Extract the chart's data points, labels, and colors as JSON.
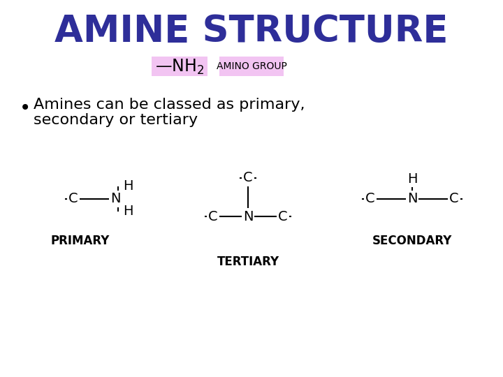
{
  "title": "AMINE STRUCTURE",
  "title_color": "#2E2E99",
  "bg_color": "#FFFFFF",
  "amino_box_color": "#F2C4F2",
  "amino_group_box_color": "#F2C4F2",
  "amino_group_text": "AMINO GROUP",
  "bullet_text_line1": "Amines can be classed as primary,",
  "bullet_text_line2": "secondary or tertiary",
  "primary_label": "PRIMARY",
  "secondary_label": "SECONDARY",
  "tertiary_label": "TERTIARY",
  "structure_color": "#000000",
  "title_fontsize": 38,
  "bullet_fontsize": 16,
  "struct_fontsize": 14,
  "label_fontsize": 12,
  "nh2_fontsize": 17,
  "amino_group_fontsize": 10,
  "lw": 1.5,
  "tick": 12
}
